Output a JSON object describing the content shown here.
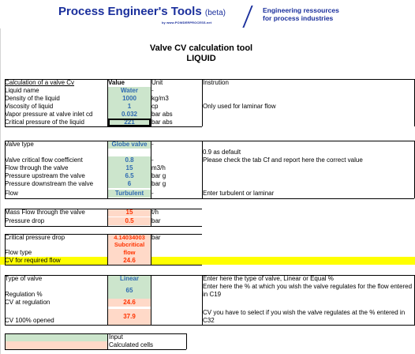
{
  "header": {
    "brand": "Process Engineer's Tools",
    "beta": "(beta)",
    "url": "by www.POWDERPROCESS.net",
    "tagline_1": "Engineering ressources",
    "tagline_2": "for process industries"
  },
  "title": {
    "line1": "Valve CV calculation tool",
    "line2": "LIQUID"
  },
  "columns": {
    "label": "Calculation of a valve Cv",
    "value": "Value",
    "unit": "Unit",
    "instruction": "Instrution"
  },
  "rows": [
    {
      "label": "Liquid name",
      "value": "Water",
      "unit": "-",
      "ins": ""
    },
    {
      "label": "Density of the liquid",
      "value": "1000",
      "unit": "kg/m3",
      "ins": ""
    },
    {
      "label": "Viscosity of liquid",
      "value": "1",
      "unit": "cp",
      "ins": "Only used for laminar flow"
    },
    {
      "label": "Vapor pressure at valve inlet cd",
      "value": "0.032",
      "unit": "bar abs",
      "ins": ""
    },
    {
      "label": "Critical pressure of the liquid",
      "value": "221",
      "unit": "bar abs",
      "ins": ""
    },
    {
      "label": "Valve type",
      "value": "Globe valve",
      "unit": "-",
      "ins": ""
    },
    {
      "label": "Valve critical flow coefficient",
      "value": "0.8",
      "unit": "-",
      "ins1": "0.9 as default",
      "ins2": "Please check the tab Cf and report here the correct value"
    },
    {
      "label": "Flow through the valve",
      "value": "15",
      "unit": "m3/h",
      "ins": ""
    },
    {
      "label": "Pressure upstream the valve",
      "value": "6.5",
      "unit": "bar g",
      "ins": ""
    },
    {
      "label": "Pressure downstream the valve",
      "value": "6",
      "unit": "bar g",
      "ins": ""
    },
    {
      "label": "Flow",
      "value": "Turbulent",
      "unit": "-",
      "ins": "Enter turbulent or laminar"
    },
    {
      "label": "Mass Flow through the valve",
      "value": "15",
      "unit": "t/h",
      "ins": ""
    },
    {
      "label": "Pressure drop",
      "value": "0.5",
      "unit": "bar",
      "ins": ""
    },
    {
      "label": "Critical pressure drop",
      "value": "4.14034003",
      "unit": "bar",
      "ins": ""
    },
    {
      "label": "Flow type",
      "value": "Subcritical flow",
      "unit": "",
      "ins": ""
    },
    {
      "label": "CV for required flow",
      "value": "24.6",
      "unit": "",
      "ins": ""
    },
    {
      "label": "Type of valve",
      "value": "Linear",
      "unit": "",
      "ins": "Enter here the type of valve, Linear or Equal %"
    },
    {
      "label": "Regulation %",
      "value": "65",
      "unit": "",
      "ins": "Enter here the % at which you wish the valve regulates for the flow entered in C19"
    },
    {
      "label": "CV at regulation",
      "value": "24.6",
      "unit": "",
      "ins": ""
    },
    {
      "label": "CV 100% opened",
      "value": "37.9",
      "unit": "",
      "ins": "CV you have to select if you wish the valve regulates at the % entered in C32"
    }
  ],
  "legend": {
    "input": "Input",
    "calculated": "Calculated cells"
  },
  "colors": {
    "input": "#cce5cc",
    "calculated": "#ffd9c8",
    "highlight": "#ffff00",
    "brand": "#1a2f9c",
    "value_text": "#2f6ab0",
    "calc_text": "#ff3300"
  }
}
